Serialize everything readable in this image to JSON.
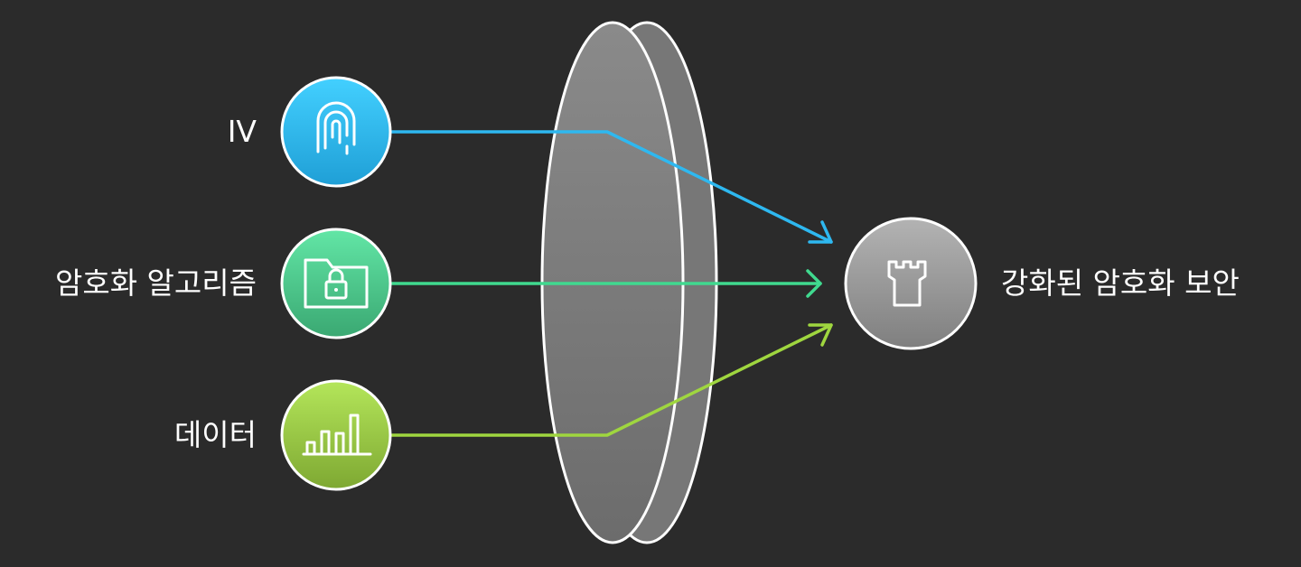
{
  "inputs": [
    {
      "label": "IV",
      "icon": "fingerprint-icon",
      "color": "#2eb8f0"
    },
    {
      "label": "암호화 알고리즘",
      "icon": "locked-folder-icon",
      "color": "#40d98f"
    },
    {
      "label": "데이터",
      "icon": "bar-chart-icon",
      "color": "#9fd63f"
    }
  ],
  "output": {
    "label": "강화된 암호화 보안",
    "icon": "castle-tower-icon",
    "color": "#9a9a9a"
  },
  "lens": {
    "icon": "lens-shape"
  }
}
